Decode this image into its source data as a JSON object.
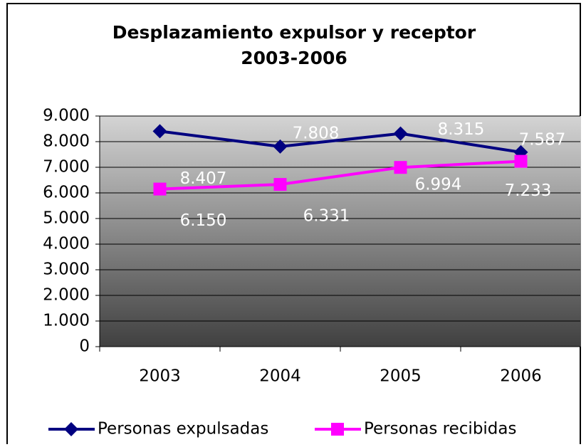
{
  "chart_data": {
    "type": "line",
    "title": [
      "Desplazamiento expulsor y receptor",
      "2003-2006"
    ],
    "categories": [
      "2003",
      "2004",
      "2005",
      "2006"
    ],
    "series": [
      {
        "name": "Personas expulsadas",
        "color": "#000080",
        "marker": "diamond",
        "values": [
          8407,
          7808,
          8315,
          7587
        ],
        "value_labels": [
          "8.407",
          "7.808",
          "8.315",
          "7.587"
        ]
      },
      {
        "name": "Personas recibidas",
        "color": "#ff00ff",
        "marker": "square",
        "values": [
          6150,
          6331,
          6994,
          7233
        ],
        "value_labels": [
          "6.150",
          "6.331",
          "6.994",
          "7.233"
        ]
      }
    ],
    "ylim": [
      0,
      9000
    ],
    "yticks": [
      0,
      {
        "value": 1000,
        "label": "1.000"
      },
      {
        "value": 2000,
        "label": "2.000"
      },
      {
        "value": 3000,
        "label": "3.000"
      },
      {
        "value": 4000,
        "label": "4.000"
      },
      {
        "value": 5000,
        "label": "5.000"
      },
      {
        "value": 6000,
        "label": "6.000"
      },
      {
        "value": 7000,
        "label": "7.000"
      },
      {
        "value": 8000,
        "label": "8.000"
      },
      {
        "value": 9000,
        "label": "9.000"
      }
    ],
    "grid": true,
    "legend": "bottom"
  }
}
